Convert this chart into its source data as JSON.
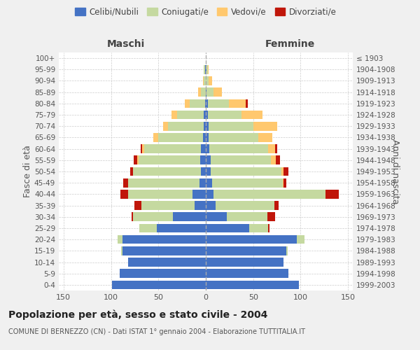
{
  "age_groups": [
    "0-4",
    "5-9",
    "10-14",
    "15-19",
    "20-24",
    "25-29",
    "30-34",
    "35-39",
    "40-44",
    "45-49",
    "50-54",
    "55-59",
    "60-64",
    "65-69",
    "70-74",
    "75-79",
    "80-84",
    "85-89",
    "90-94",
    "95-99",
    "100+"
  ],
  "birth_years": [
    "1999-2003",
    "1994-1998",
    "1989-1993",
    "1984-1988",
    "1979-1983",
    "1974-1978",
    "1969-1973",
    "1964-1968",
    "1959-1963",
    "1954-1958",
    "1949-1953",
    "1944-1948",
    "1939-1943",
    "1934-1938",
    "1929-1933",
    "1924-1928",
    "1919-1923",
    "1914-1918",
    "1909-1913",
    "1904-1908",
    "≤ 1903"
  ],
  "male_celibe": [
    99,
    91,
    82,
    88,
    88,
    52,
    35,
    12,
    14,
    7,
    5,
    6,
    5,
    3,
    2,
    2,
    1,
    0,
    0,
    1,
    0
  ],
  "male_coniugato": [
    0,
    0,
    0,
    1,
    5,
    18,
    42,
    56,
    68,
    75,
    72,
    65,
    60,
    47,
    38,
    28,
    16,
    5,
    2,
    1,
    0
  ],
  "male_vedovo": [
    0,
    0,
    0,
    0,
    0,
    0,
    0,
    0,
    0,
    0,
    0,
    1,
    2,
    5,
    5,
    6,
    5,
    3,
    1,
    0,
    0
  ],
  "male_divorziato": [
    0,
    0,
    0,
    0,
    0,
    0,
    1,
    7,
    8,
    5,
    3,
    4,
    2,
    0,
    0,
    0,
    0,
    0,
    0,
    0,
    0
  ],
  "female_celibe": [
    98,
    87,
    82,
    85,
    96,
    46,
    22,
    10,
    8,
    7,
    5,
    5,
    4,
    3,
    3,
    2,
    2,
    1,
    0,
    1,
    0
  ],
  "female_coniugata": [
    0,
    0,
    0,
    1,
    8,
    20,
    43,
    62,
    118,
    74,
    75,
    64,
    62,
    52,
    47,
    36,
    22,
    7,
    3,
    1,
    0
  ],
  "female_vedova": [
    0,
    0,
    0,
    0,
    0,
    0,
    0,
    0,
    0,
    1,
    2,
    5,
    7,
    15,
    25,
    22,
    18,
    9,
    4,
    1,
    0
  ],
  "female_divorziata": [
    0,
    0,
    0,
    0,
    0,
    1,
    8,
    5,
    14,
    3,
    5,
    4,
    2,
    0,
    0,
    0,
    2,
    0,
    0,
    0,
    0
  ],
  "colors": {
    "celibe": "#4472c4",
    "coniugato": "#c5d9a0",
    "vedovo": "#ffc86e",
    "divorziato": "#c0160a"
  },
  "xlim": 155,
  "title": "Popolazione per età, sesso e stato civile - 2004",
  "subtitle": "COMUNE DI BERNEZZO (CN) - Dati ISTAT 1° gennaio 2004 - Elaborazione TUTTITALIA.IT",
  "ylabel_left": "Fasce di età",
  "ylabel_right": "Anni di nascita",
  "xlabel_left": "Maschi",
  "xlabel_right": "Femmine",
  "bg_color": "#f0f0f0",
  "plot_bg_color": "#ffffff"
}
